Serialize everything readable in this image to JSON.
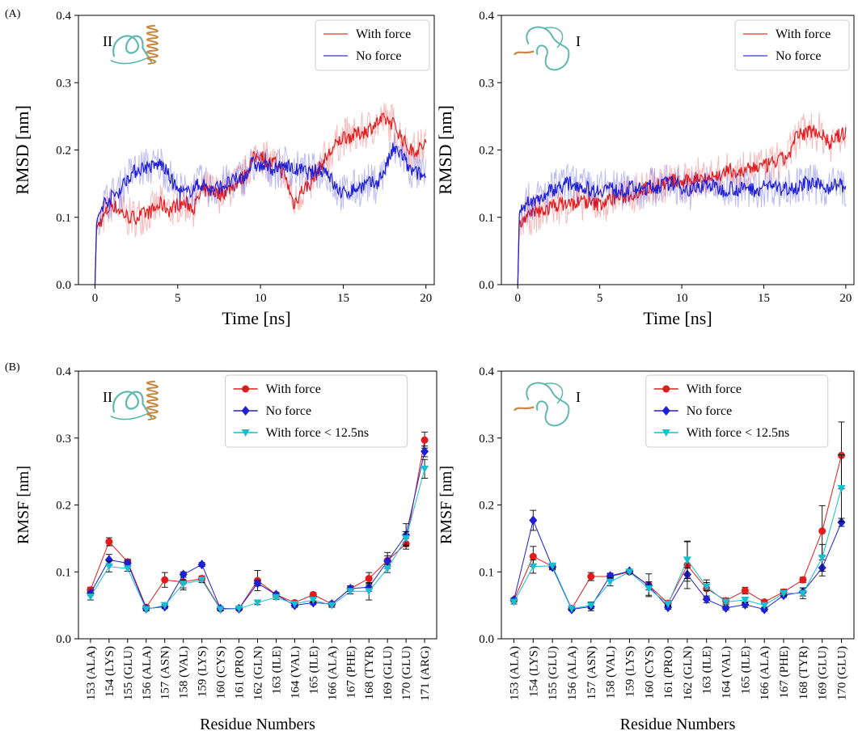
{
  "panel_labels": [
    "(A)",
    "(B)"
  ],
  "colors": {
    "with_force": "#e41a1c",
    "no_force": "#1f1fd6",
    "with_force_early": "#17becf",
    "protein_teal": "#5fb8b0",
    "protein_orange": "#c8873e"
  },
  "chart_data": [
    {
      "id": "rmsd-II",
      "type": "line",
      "structure_label": "II",
      "xlabel": "Time [ns]",
      "ylabel": "RMSD [nm]",
      "xlim": [
        -1,
        20.5
      ],
      "ylim": [
        0,
        0.4
      ],
      "xticks": [
        0,
        5,
        10,
        15,
        20
      ],
      "yticks": [
        "0.0",
        "0.1",
        "0.2",
        "0.3",
        "0.4"
      ],
      "legend_position": "top-right",
      "series": [
        {
          "name": "With force",
          "color": "#e41a1c",
          "x": [
            0,
            0.1,
            0.5,
            1,
            1.5,
            2,
            2.5,
            3,
            3.5,
            4,
            4.5,
            5,
            5.5,
            6,
            6.5,
            7,
            7.5,
            8,
            8.5,
            9,
            9.5,
            10,
            10.5,
            11,
            11.5,
            12,
            12.5,
            13,
            13.5,
            14,
            14.5,
            15,
            15.5,
            16,
            16.5,
            17,
            17.5,
            18,
            18.5,
            19,
            19.5,
            20
          ],
          "y": [
            0,
            0.085,
            0.1,
            0.12,
            0.11,
            0.1,
            0.1,
            0.105,
            0.11,
            0.12,
            0.11,
            0.12,
            0.12,
            0.115,
            0.14,
            0.14,
            0.135,
            0.14,
            0.15,
            0.16,
            0.185,
            0.195,
            0.18,
            0.18,
            0.16,
            0.12,
            0.14,
            0.15,
            0.17,
            0.19,
            0.205,
            0.22,
            0.22,
            0.225,
            0.23,
            0.24,
            0.245,
            0.24,
            0.22,
            0.2,
            0.2,
            0.21
          ]
        },
        {
          "name": "No force",
          "color": "#1f1fd6",
          "x": [
            0,
            0.1,
            0.5,
            1,
            1.5,
            2,
            2.5,
            3,
            3.5,
            4,
            4.5,
            5,
            5.5,
            6,
            6.5,
            7,
            7.5,
            8,
            8.5,
            9,
            9.5,
            10,
            10.5,
            11,
            11.5,
            12,
            12.5,
            13,
            13.5,
            14,
            14.5,
            15,
            15.5,
            16,
            16.5,
            17,
            17.5,
            18,
            18.5,
            19,
            19.5,
            20
          ],
          "y": [
            0,
            0.095,
            0.12,
            0.13,
            0.14,
            0.16,
            0.17,
            0.175,
            0.175,
            0.18,
            0.16,
            0.14,
            0.135,
            0.145,
            0.15,
            0.14,
            0.145,
            0.15,
            0.155,
            0.16,
            0.18,
            0.175,
            0.175,
            0.17,
            0.18,
            0.17,
            0.17,
            0.165,
            0.17,
            0.17,
            0.145,
            0.135,
            0.14,
            0.145,
            0.15,
            0.15,
            0.17,
            0.2,
            0.195,
            0.17,
            0.165,
            0.16
          ]
        }
      ]
    },
    {
      "id": "rmsd-I",
      "type": "line",
      "structure_label": "I",
      "xlabel": "Time [ns]",
      "ylabel": "RMSD [nm]",
      "xlim": [
        -1,
        20.5
      ],
      "ylim": [
        0,
        0.4
      ],
      "xticks": [
        0,
        5,
        10,
        15,
        20
      ],
      "yticks": [
        "0.0",
        "0.1",
        "0.2",
        "0.3",
        "0.4"
      ],
      "legend_position": "top-right",
      "series": [
        {
          "name": "With force",
          "color": "#e41a1c",
          "x": [
            0,
            0.1,
            0.5,
            1,
            1.5,
            2,
            2.5,
            3,
            3.5,
            4,
            4.5,
            5,
            5.5,
            6,
            6.5,
            7,
            7.5,
            8,
            8.5,
            9,
            9.5,
            10,
            10.5,
            11,
            11.5,
            12,
            12.5,
            13,
            13.5,
            14,
            14.5,
            15,
            15.5,
            16,
            16.5,
            17,
            17.5,
            18,
            18.5,
            19,
            19.5,
            20
          ],
          "y": [
            0,
            0.095,
            0.1,
            0.105,
            0.11,
            0.115,
            0.12,
            0.12,
            0.12,
            0.125,
            0.12,
            0.12,
            0.125,
            0.13,
            0.13,
            0.135,
            0.14,
            0.145,
            0.15,
            0.15,
            0.155,
            0.15,
            0.155,
            0.16,
            0.16,
            0.16,
            0.165,
            0.17,
            0.165,
            0.17,
            0.175,
            0.175,
            0.18,
            0.185,
            0.19,
            0.22,
            0.225,
            0.23,
            0.225,
            0.21,
            0.22,
            0.225
          ]
        },
        {
          "name": "No force",
          "color": "#1f1fd6",
          "x": [
            0,
            0.1,
            0.5,
            1,
            1.5,
            2,
            2.5,
            3,
            3.5,
            4,
            4.5,
            5,
            5.5,
            6,
            6.5,
            7,
            7.5,
            8,
            8.5,
            9,
            9.5,
            10,
            10.5,
            11,
            11.5,
            12,
            12.5,
            13,
            13.5,
            14,
            14.5,
            15,
            15.5,
            16,
            16.5,
            17,
            17.5,
            18,
            18.5,
            19,
            19.5,
            20
          ],
          "y": [
            0,
            0.11,
            0.12,
            0.125,
            0.13,
            0.14,
            0.145,
            0.15,
            0.15,
            0.145,
            0.14,
            0.14,
            0.145,
            0.14,
            0.14,
            0.145,
            0.14,
            0.145,
            0.145,
            0.15,
            0.15,
            0.145,
            0.14,
            0.145,
            0.15,
            0.145,
            0.14,
            0.145,
            0.14,
            0.145,
            0.14,
            0.145,
            0.15,
            0.14,
            0.145,
            0.145,
            0.15,
            0.15,
            0.145,
            0.145,
            0.15,
            0.145
          ]
        }
      ]
    },
    {
      "id": "rmsf-II",
      "type": "line",
      "structure_label": "II",
      "xlabel": "Residue Numbers",
      "ylabel": "RMSF [nm]",
      "ylim": [
        0,
        0.4
      ],
      "yticks": [
        "0.0",
        "0.1",
        "0.2",
        "0.3",
        "0.4"
      ],
      "legend_position": "top-center",
      "categories": [
        "153 (ALA)",
        "154 (LYS)",
        "155 (GLU)",
        "156 (ALA)",
        "157 (ASN)",
        "158 (VAL)",
        "159 (LYS)",
        "160 (CYS)",
        "161 (PRO)",
        "162 (GLN)",
        "163 (ILE)",
        "164 (VAL)",
        "165 (ILE)",
        "166 (ALA)",
        "167 (PHE)",
        "168 (TYR)",
        "169 (GLU)",
        "170 (GLU)",
        "171 (ARG)"
      ],
      "series": [
        {
          "name": "With force",
          "color": "#e41a1c",
          "marker": "circle",
          "values": [
            0.073,
            0.145,
            0.115,
            0.047,
            0.088,
            0.085,
            0.09,
            0.045,
            0.045,
            0.087,
            0.066,
            0.054,
            0.066,
            0.052,
            0.075,
            0.09,
            0.117,
            0.142,
            0.297
          ],
          "errors": [
            0.004,
            0.006,
            0.004,
            0.003,
            0.011,
            0.012,
            0.004,
            0.003,
            0.002,
            0.015,
            0.003,
            0.003,
            0.003,
            0.003,
            0.004,
            0.009,
            0.012,
            0.008,
            0.012
          ]
        },
        {
          "name": "No force",
          "color": "#1f1fd6",
          "marker": "diamond",
          "values": [
            0.068,
            0.118,
            0.113,
            0.045,
            0.048,
            0.096,
            0.111,
            0.045,
            0.045,
            0.083,
            0.066,
            0.05,
            0.054,
            0.052,
            0.075,
            0.077,
            0.116,
            0.155,
            0.28
          ],
          "errors": [
            0.003,
            0.008,
            0.004,
            0.003,
            0.003,
            0.004,
            0.003,
            0.002,
            0.002,
            0.004,
            0.003,
            0.003,
            0.003,
            0.003,
            0.004,
            0.006,
            0.008,
            0.017,
            0.008
          ]
        },
        {
          "name": "With force < 12.5ns",
          "color": "#17becf",
          "marker": "triangle-down",
          "values": [
            0.063,
            0.108,
            0.105,
            0.044,
            0.05,
            0.082,
            0.088,
            0.044,
            0.045,
            0.054,
            0.062,
            0.052,
            0.058,
            0.05,
            0.071,
            0.071,
            0.105,
            0.15,
            0.254
          ],
          "errors": [
            0.005,
            0.008,
            0.004,
            0.002,
            0.003,
            0.006,
            0.004,
            0.002,
            0.002,
            0.003,
            0.003,
            0.003,
            0.003,
            0.003,
            0.004,
            0.013,
            0.006,
            0.01,
            0.014
          ]
        }
      ]
    },
    {
      "id": "rmsf-I",
      "type": "line",
      "structure_label": "I",
      "xlabel": "Residue Numbers",
      "ylabel": "RMSF [nm]",
      "ylim": [
        0,
        0.4
      ],
      "yticks": [
        "0.0",
        "0.1",
        "0.2",
        "0.3",
        "0.4"
      ],
      "legend_position": "top-center",
      "categories": [
        "153 (ALA)",
        "154 (LYS)",
        "155 (GLU)",
        "156 (ALA)",
        "157 (ASN)",
        "158 (VAL)",
        "159 (LYS)",
        "160 (CYS)",
        "161 (PRO)",
        "162 (GLN)",
        "163 (ILE)",
        "164 (VAL)",
        "165 (ILE)",
        "166 (ALA)",
        "167 (PHE)",
        "168 (TYR)",
        "169 (GLU)",
        "170 (GLU)"
      ],
      "series": [
        {
          "name": "With force",
          "color": "#e41a1c",
          "marker": "circle",
          "values": [
            0.058,
            0.123,
            0.108,
            0.045,
            0.093,
            0.093,
            0.1,
            0.08,
            0.053,
            0.11,
            0.075,
            0.057,
            0.072,
            0.055,
            0.07,
            0.088,
            0.161,
            0.274
          ],
          "errors": [
            0.003,
            0.015,
            0.004,
            0.003,
            0.006,
            0.004,
            0.003,
            0.017,
            0.004,
            0.035,
            0.013,
            0.004,
            0.005,
            0.003,
            0.004,
            0.004,
            0.038,
            0.05
          ]
        },
        {
          "name": "No force",
          "color": "#1f1fd6",
          "marker": "diamond",
          "values": [
            0.058,
            0.177,
            0.107,
            0.044,
            0.048,
            0.094,
            0.101,
            0.079,
            0.047,
            0.096,
            0.059,
            0.046,
            0.051,
            0.044,
            0.065,
            0.07,
            0.106,
            0.174
          ],
          "errors": [
            0.003,
            0.015,
            0.004,
            0.002,
            0.006,
            0.004,
            0.003,
            0.006,
            0.003,
            0.01,
            0.005,
            0.003,
            0.004,
            0.003,
            0.003,
            0.006,
            0.012,
            0.006
          ]
        },
        {
          "name": "With force < 12.5ns",
          "color": "#17becf",
          "marker": "triangle-down",
          "values": [
            0.055,
            0.108,
            0.109,
            0.045,
            0.05,
            0.085,
            0.1,
            0.075,
            0.052,
            0.118,
            0.078,
            0.055,
            0.058,
            0.05,
            0.068,
            0.068,
            0.121,
            0.225
          ],
          "errors": [
            0.003,
            0.01,
            0.004,
            0.002,
            0.005,
            0.006,
            0.003,
            0.01,
            0.003,
            0.028,
            0.006,
            0.004,
            0.004,
            0.003,
            0.004,
            0.008,
            0.02,
            0.05
          ]
        }
      ]
    }
  ]
}
